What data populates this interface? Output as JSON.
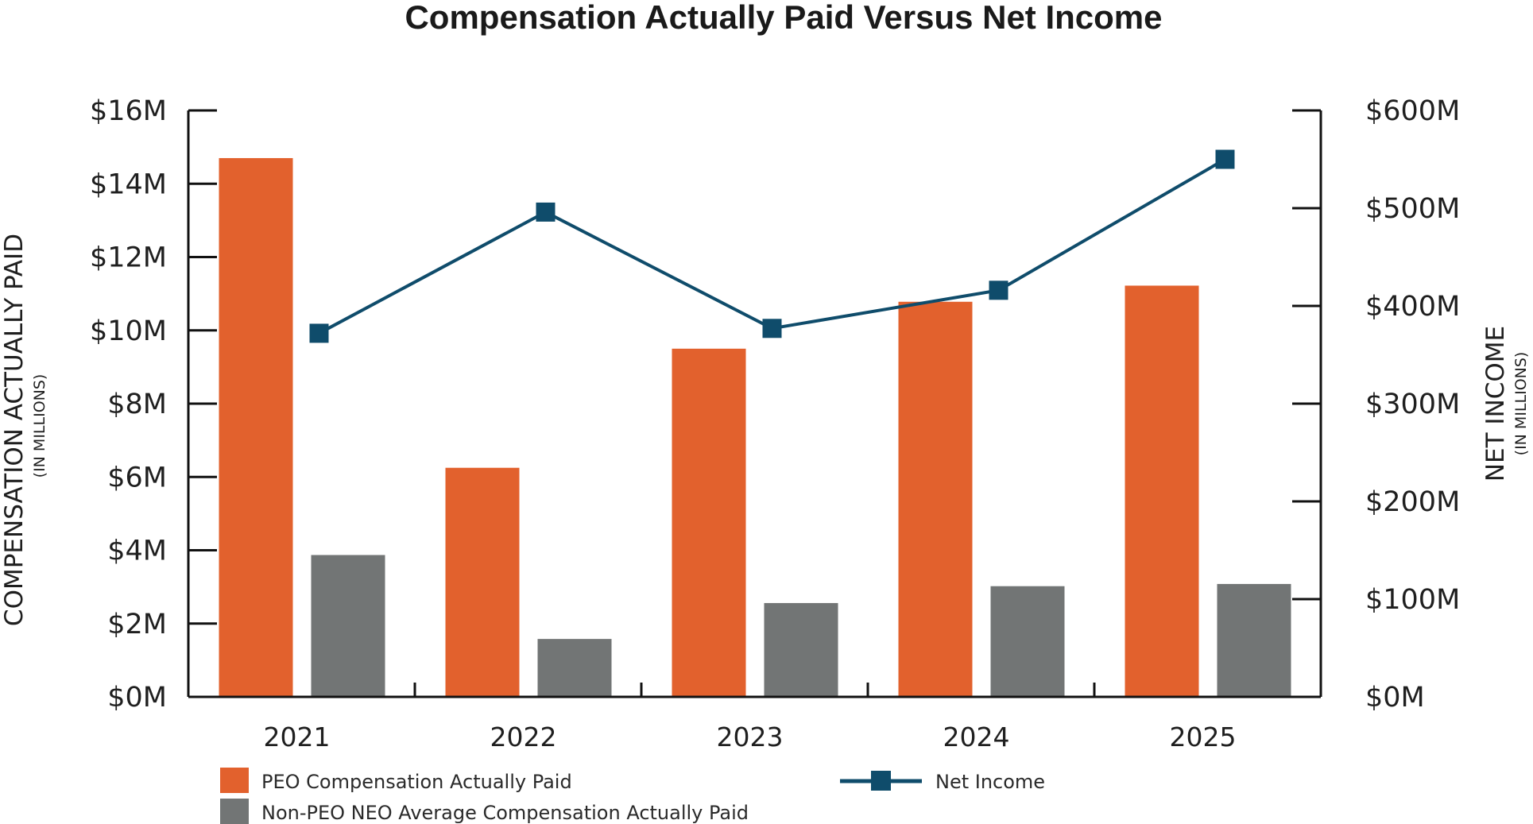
{
  "colors": {
    "peo": "#E2612D",
    "non_peo": "#727575",
    "net_income": "#0F4C6B"
  },
  "chart_data": {
    "type": "bar",
    "title": "Compensation Actually Paid Versus Net Income",
    "categories": [
      "2021",
      "2022",
      "2023",
      "2024",
      "2025"
    ],
    "series": [
      {
        "name": "PEO Compensation Actually Paid",
        "type": "bar",
        "axis": "left",
        "values": [
          14.7,
          6.25,
          9.5,
          10.78,
          11.22
        ]
      },
      {
        "name": "Non-PEO NEO Average Compensation Actually Paid",
        "type": "bar",
        "axis": "left",
        "values": [
          3.87,
          1.58,
          2.56,
          3.02,
          3.08
        ]
      },
      {
        "name": "Net Income",
        "type": "line",
        "axis": "right",
        "marker": "square",
        "values": [
          372,
          496,
          377,
          416,
          550
        ]
      }
    ],
    "left_axis": {
      "label": "COMPENSATION ACTUALLY PAID",
      "sublabel": "(IN MILLIONS)",
      "ylim": [
        0,
        16
      ],
      "ticks": [
        "$0M",
        "$2M",
        "$4M",
        "$6M",
        "$8M",
        "$10M",
        "$12M",
        "$14M",
        "$16M"
      ]
    },
    "right_axis": {
      "label": "NET INCOME",
      "sublabel": "(IN MILLIONS)",
      "ylim": [
        0,
        600
      ],
      "ticks": [
        "$0M",
        "$100M",
        "$200M",
        "$300M",
        "$400M",
        "$500M",
        "$600M"
      ]
    },
    "grid": false,
    "legend_position": "bottom"
  }
}
